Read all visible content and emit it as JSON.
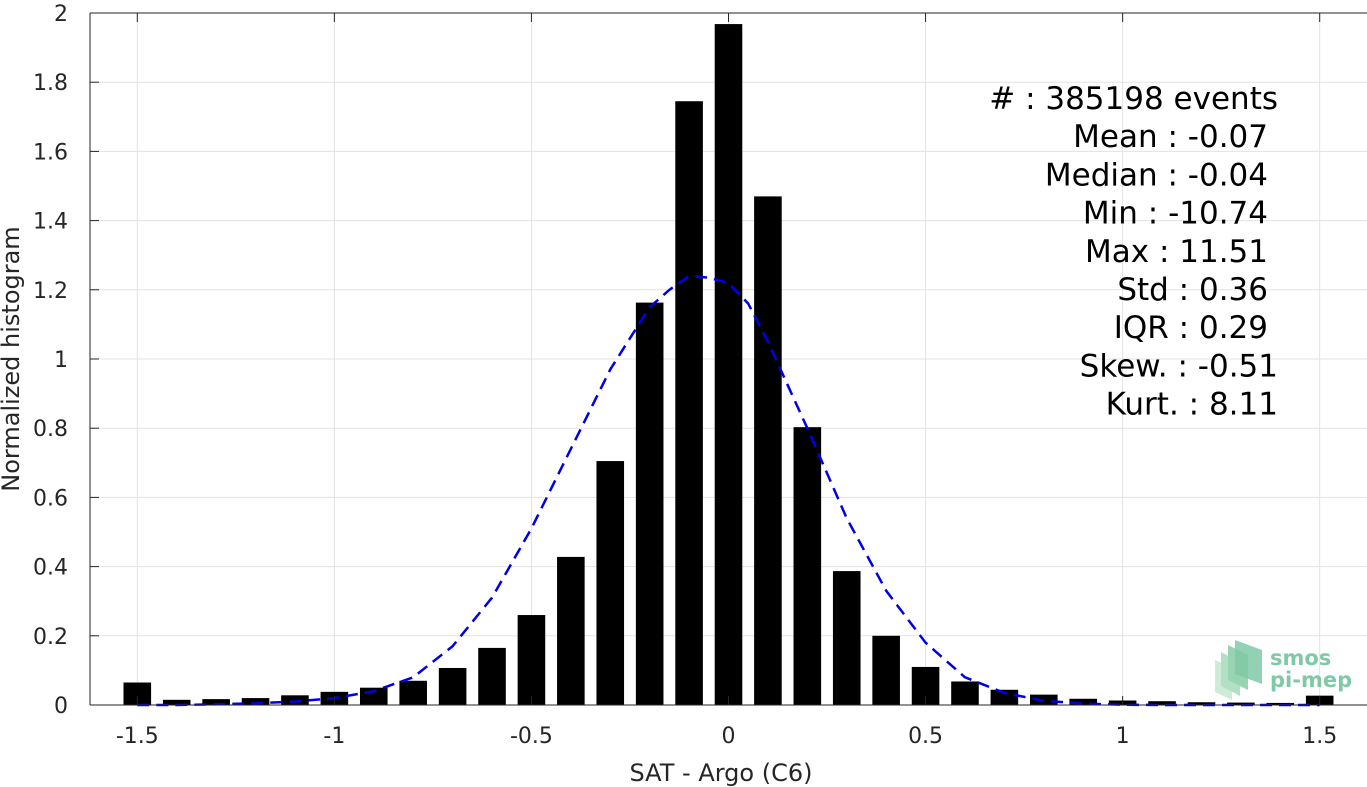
{
  "chart_data": {
    "type": "bar",
    "xlabel": "SAT - Argo (C6)",
    "ylabel": "Normalized histogram",
    "xlim": [
      -1.62,
      1.62
    ],
    "ylim": [
      0,
      2
    ],
    "xticks": [
      -1.5,
      -1,
      -0.5,
      0,
      0.5,
      1,
      1.5
    ],
    "xtick_labels": [
      "-1.5",
      "-1",
      "-0.5",
      "0",
      "0.5",
      "1",
      "1.5"
    ],
    "yticks": [
      0,
      0.2,
      0.4,
      0.6,
      0.8,
      1,
      1.2,
      1.4,
      1.6,
      1.8,
      2
    ],
    "ytick_labels": [
      "0",
      "0.2",
      "0.4",
      "0.6",
      "0.8",
      "1",
      "1.2",
      "1.4",
      "1.6",
      "1.8",
      "2"
    ],
    "grid": true,
    "bar_color": "#000000",
    "bar_width": 0.07,
    "bars": {
      "x": [
        -1.5,
        -1.4,
        -1.3,
        -1.2,
        -1.1,
        -1.0,
        -0.9,
        -0.8,
        -0.7,
        -0.6,
        -0.5,
        -0.4,
        -0.3,
        -0.2,
        -0.1,
        0.0,
        0.1,
        0.2,
        0.3,
        0.4,
        0.5,
        0.6,
        0.7,
        0.8,
        0.9,
        1.0,
        1.1,
        1.2,
        1.3,
        1.4,
        1.5
      ],
      "y": [
        0.065,
        0.015,
        0.017,
        0.02,
        0.028,
        0.038,
        0.05,
        0.07,
        0.107,
        0.165,
        0.26,
        0.428,
        0.705,
        1.163,
        1.745,
        1.968,
        1.47,
        0.803,
        0.387,
        0.2,
        0.11,
        0.068,
        0.044,
        0.03,
        0.018,
        0.013,
        0.011,
        0.008,
        0.007,
        0.006,
        0.027
      ]
    },
    "fit_curve": {
      "style": "dashed",
      "color": "#0000e6",
      "x": [
        -1.5,
        -1.4,
        -1.3,
        -1.2,
        -1.1,
        -1.0,
        -0.9,
        -0.8,
        -0.7,
        -0.6,
        -0.5,
        -0.4,
        -0.3,
        -0.25,
        -0.2,
        -0.15,
        -0.1,
        -0.05,
        0.0,
        0.05,
        0.1,
        0.2,
        0.3,
        0.4,
        0.5,
        0.6,
        0.7,
        0.8,
        0.9,
        1.0,
        1.1,
        1.2,
        1.3,
        1.4,
        1.5
      ],
      "y": [
        0.0,
        0.0,
        0.002,
        0.005,
        0.01,
        0.02,
        0.04,
        0.08,
        0.17,
        0.31,
        0.51,
        0.74,
        0.97,
        1.06,
        1.15,
        1.2,
        1.24,
        1.235,
        1.22,
        1.16,
        1.05,
        0.8,
        0.54,
        0.33,
        0.18,
        0.08,
        0.035,
        0.012,
        0.004,
        0.001,
        0.0,
        0.0,
        0.0,
        0.0,
        0.0
      ]
    },
    "annotations": [
      {
        "key": "count",
        "text": "#   : 385198 events"
      },
      {
        "key": "mean",
        "text": "Mean : -0.07"
      },
      {
        "key": "median",
        "text": "Median : -0.04"
      },
      {
        "key": "min",
        "text": "Min : -10.74"
      },
      {
        "key": "max",
        "text": "Max : 11.51"
      },
      {
        "key": "std",
        "text": "Std : 0.36"
      },
      {
        "key": "iqr",
        "text": "IQR : 0.29"
      },
      {
        "key": "skew",
        "text": "Skew. : -0.51"
      },
      {
        "key": "kurt",
        "text": "Kurt. : 8.11"
      }
    ]
  },
  "logo": {
    "line1": "smos",
    "line2": "pi-mep",
    "color": "#7fc9a6"
  }
}
